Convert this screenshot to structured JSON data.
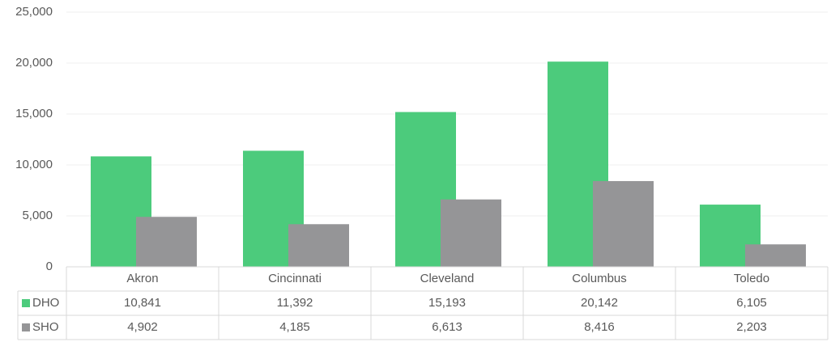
{
  "chart_data": {
    "type": "bar",
    "categories": [
      "Akron",
      "Cincinnati",
      "Cleveland",
      "Columbus",
      "Toledo"
    ],
    "series": [
      {
        "name": "DHO",
        "color": "#4ccb7c",
        "values": [
          10841,
          11392,
          15193,
          20142,
          6105
        ],
        "value_labels": [
          "10,841",
          "11,392",
          "15,193",
          "20,142",
          "6,105"
        ]
      },
      {
        "name": "SHO",
        "color": "#959597",
        "values": [
          4902,
          4185,
          6613,
          8416,
          2203
        ],
        "value_labels": [
          "4,902",
          "4,185",
          "6,613",
          "8,416",
          "2,203"
        ]
      }
    ],
    "ylim": [
      0,
      25000
    ],
    "yticks": [
      0,
      {
        "value": 5000,
        "label": "5,000"
      },
      {
        "value": 10000,
        "label": "10,000"
      },
      {
        "value": 15000,
        "label": "15,000"
      },
      {
        "value": 20000,
        "label": "20,000"
      },
      {
        "value": 25000,
        "label": "25,000"
      }
    ],
    "grid": true
  }
}
